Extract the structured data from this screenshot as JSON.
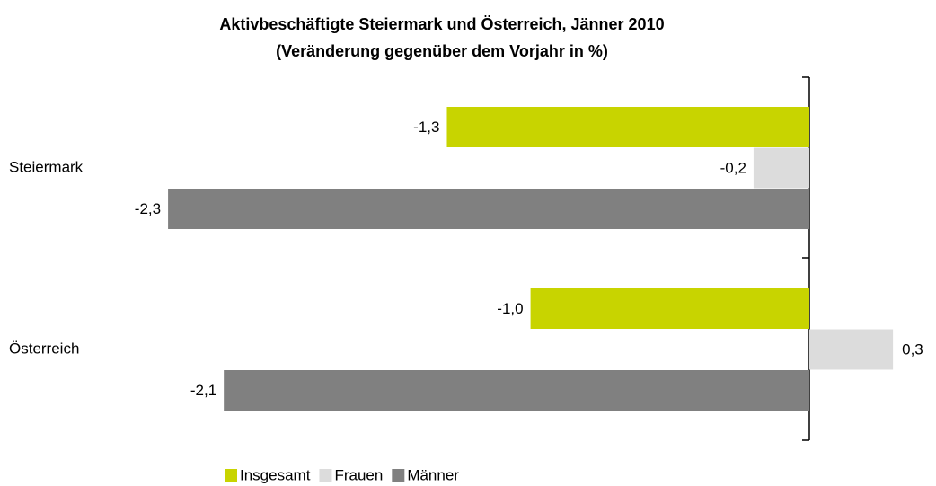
{
  "chart_data": {
    "type": "bar",
    "orientation": "horizontal",
    "title": "Aktivbeschäftigte Steiermark und Österreich, Jänner 2010",
    "subtitle": "(Veränderung gegenüber dem Vorjahr in %)",
    "categories": [
      "Steiermark",
      "Österreich"
    ],
    "series": [
      {
        "name": "Insgesamt",
        "color": "#c8d400",
        "values": [
          -1.3,
          -1.0
        ],
        "value_labels": [
          "-1,3",
          "-1,0"
        ]
      },
      {
        "name": "Frauen",
        "color": "#dcdcdc",
        "values": [
          -0.2,
          0.3
        ],
        "value_labels": [
          "-0,2",
          "0,3"
        ]
      },
      {
        "name": "Männer",
        "color": "#808080",
        "values": [
          -2.3,
          -2.1
        ],
        "value_labels": [
          "-2,3",
          "-2,1"
        ]
      }
    ],
    "legend": "bottom"
  }
}
